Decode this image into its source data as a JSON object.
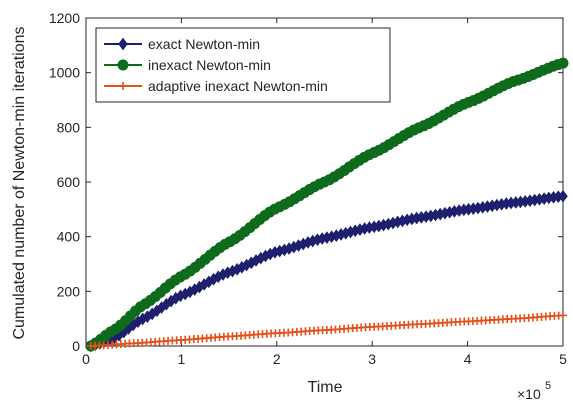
{
  "chart_data": {
    "type": "line",
    "xlabel": "Time",
    "ylabel": "Cumulated number of Newton-min iterations",
    "x_exponent_prefix": "×10",
    "x_exponent_power": "5",
    "xlim": [
      0,
      5
    ],
    "ylim": [
      0,
      1200
    ],
    "xticks": [
      0,
      1,
      2,
      3,
      4,
      5
    ],
    "yticks": [
      0,
      200,
      400,
      600,
      800,
      1000,
      1200
    ],
    "grid": false,
    "legend_position": "top-left",
    "series": [
      {
        "name": "exact Newton-min",
        "color": "#1f1f6e",
        "marker": "diamond",
        "x": [
          0.05,
          0.3,
          0.6,
          1.0,
          1.5,
          2.0,
          2.5,
          3.0,
          3.5,
          4.0,
          4.5,
          5.0
        ],
        "values": [
          0,
          30,
          100,
          185,
          270,
          345,
          395,
          435,
          470,
          500,
          525,
          548
        ]
      },
      {
        "name": "inexact Newton-min",
        "color": "#0f6b1c",
        "marker": "circle",
        "x": [
          0.05,
          0.3,
          0.6,
          1.0,
          1.5,
          2.0,
          2.5,
          3.0,
          3.5,
          4.0,
          4.5,
          5.0
        ],
        "values": [
          0,
          60,
          150,
          255,
          380,
          505,
          600,
          705,
          800,
          890,
          970,
          1035
        ]
      },
      {
        "name": "adaptive inexact Newton-min",
        "color": "#e5501a",
        "marker": "plus",
        "x": [
          0.05,
          0.5,
          1.0,
          1.5,
          2.0,
          2.5,
          3.0,
          3.5,
          4.0,
          4.5,
          5.0
        ],
        "values": [
          0,
          10,
          22,
          35,
          47,
          58,
          70,
          80,
          90,
          100,
          112
        ]
      }
    ]
  }
}
